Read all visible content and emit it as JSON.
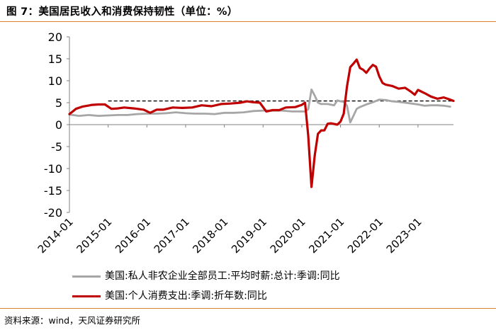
{
  "title": "图 7：美国居民收入和消费保持韧性（单位：%）",
  "source": "资料来源：wind，天风证券研究所",
  "colors": {
    "gray": "#a6a6a6",
    "red": "#c00000",
    "dashed": "#000000",
    "rule": "#d9822b"
  },
  "chart_data": {
    "type": "line",
    "x_ticks": [
      "2014-01",
      "2015-01",
      "2016-01",
      "2017-01",
      "2018-01",
      "2019-01",
      "2020-01",
      "2021-01",
      "2022-01",
      "2023-01"
    ],
    "y_ticks": [
      "20",
      "15",
      "10",
      "5",
      "0",
      "-5",
      "-10",
      "-15",
      "-20"
    ],
    "ylim": [
      -20,
      20
    ],
    "grid": false,
    "legend_position": "bottom",
    "reference_line": {
      "value": 5.4,
      "style": "dashed",
      "from": "2015-01",
      "to": "2023-12"
    },
    "series": [
      {
        "name": "美国:私人非农企业全部员工:平均时薪:总计:季调:同比",
        "color": "gray",
        "points": [
          [
            "2014-01",
            2.3
          ],
          [
            "2014-04",
            2.0
          ],
          [
            "2014-07",
            2.2
          ],
          [
            "2014-10",
            2.0
          ],
          [
            "2015-01",
            2.1
          ],
          [
            "2015-04",
            2.2
          ],
          [
            "2015-07",
            2.2
          ],
          [
            "2015-10",
            2.4
          ],
          [
            "2016-01",
            2.5
          ],
          [
            "2016-04",
            2.5
          ],
          [
            "2016-07",
            2.6
          ],
          [
            "2016-10",
            2.8
          ],
          [
            "2017-01",
            2.6
          ],
          [
            "2017-04",
            2.5
          ],
          [
            "2017-07",
            2.5
          ],
          [
            "2017-10",
            2.4
          ],
          [
            "2018-01",
            2.7
          ],
          [
            "2018-04",
            2.7
          ],
          [
            "2018-07",
            2.8
          ],
          [
            "2018-10",
            3.1
          ],
          [
            "2019-01",
            3.2
          ],
          [
            "2019-04",
            3.2
          ],
          [
            "2019-07",
            3.2
          ],
          [
            "2019-10",
            3.0
          ],
          [
            "2020-01",
            3.0
          ],
          [
            "2020-02",
            3.0
          ],
          [
            "2020-03",
            3.5
          ],
          [
            "2020-04",
            8.0
          ],
          [
            "2020-05",
            6.6
          ],
          [
            "2020-06",
            5.0
          ],
          [
            "2020-07",
            4.7
          ],
          [
            "2020-09",
            4.7
          ],
          [
            "2020-11",
            4.4
          ],
          [
            "2020-12",
            5.5
          ],
          [
            "2021-01",
            5.3
          ],
          [
            "2021-02",
            5.2
          ],
          [
            "2021-03",
            4.3
          ],
          [
            "2021-04",
            0.5
          ],
          [
            "2021-05",
            2.0
          ],
          [
            "2021-06",
            3.6
          ],
          [
            "2021-07",
            4.0
          ],
          [
            "2021-09",
            4.6
          ],
          [
            "2021-11",
            5.1
          ],
          [
            "2022-01",
            5.7
          ],
          [
            "2022-03",
            5.6
          ],
          [
            "2022-05",
            5.3
          ],
          [
            "2022-07",
            5.2
          ],
          [
            "2022-09",
            5.0
          ],
          [
            "2022-11",
            4.8
          ],
          [
            "2023-01",
            4.6
          ],
          [
            "2023-03",
            4.3
          ],
          [
            "2023-05",
            4.4
          ],
          [
            "2023-07",
            4.4
          ],
          [
            "2023-09",
            4.3
          ],
          [
            "2023-11",
            4.1
          ]
        ]
      },
      {
        "name": "美国:个人消费支出:季调:折年数:同比",
        "color": "red",
        "points": [
          [
            "2014-01",
            2.4
          ],
          [
            "2014-03",
            3.6
          ],
          [
            "2014-05",
            4.1
          ],
          [
            "2014-08",
            4.5
          ],
          [
            "2014-10",
            4.6
          ],
          [
            "2014-12",
            4.6
          ],
          [
            "2015-02",
            3.6
          ],
          [
            "2015-04",
            3.7
          ],
          [
            "2015-06",
            3.9
          ],
          [
            "2015-09",
            3.7
          ],
          [
            "2015-12",
            3.4
          ],
          [
            "2016-02",
            2.7
          ],
          [
            "2016-04",
            3.4
          ],
          [
            "2016-06",
            3.4
          ],
          [
            "2016-09",
            3.9
          ],
          [
            "2016-12",
            3.8
          ],
          [
            "2017-03",
            3.9
          ],
          [
            "2017-06",
            4.4
          ],
          [
            "2017-09",
            4.2
          ],
          [
            "2017-12",
            4.7
          ],
          [
            "2018-03",
            4.8
          ],
          [
            "2018-06",
            5.0
          ],
          [
            "2018-08",
            5.3
          ],
          [
            "2018-10",
            5.1
          ],
          [
            "2018-12",
            5.0
          ],
          [
            "2019-02",
            3.0
          ],
          [
            "2019-04",
            3.3
          ],
          [
            "2019-06",
            3.3
          ],
          [
            "2019-08",
            3.9
          ],
          [
            "2019-11",
            4.0
          ],
          [
            "2020-01",
            4.5
          ],
          [
            "2020-02",
            5.0
          ],
          [
            "2020-03",
            -2.5
          ],
          [
            "2020-04",
            -14.2
          ],
          [
            "2020-05",
            -7.0
          ],
          [
            "2020-06",
            -2.1
          ],
          [
            "2020-07",
            -1.3
          ],
          [
            "2020-08",
            -1.3
          ],
          [
            "2020-09",
            0.2
          ],
          [
            "2020-10",
            0.3
          ],
          [
            "2020-12",
            0.0
          ],
          [
            "2021-01",
            0.7
          ],
          [
            "2021-02",
            2.5
          ],
          [
            "2021-03",
            8.7
          ],
          [
            "2021-04",
            13.1
          ],
          [
            "2021-05",
            13.9
          ],
          [
            "2021-06",
            14.8
          ],
          [
            "2021-07",
            12.9
          ],
          [
            "2021-08",
            12.5
          ],
          [
            "2021-09",
            11.8
          ],
          [
            "2021-10",
            12.8
          ],
          [
            "2021-11",
            13.6
          ],
          [
            "2021-12",
            13.2
          ],
          [
            "2022-01",
            11.0
          ],
          [
            "2022-02",
            9.5
          ],
          [
            "2022-03",
            9.1
          ],
          [
            "2022-05",
            8.8
          ],
          [
            "2022-07",
            8.2
          ],
          [
            "2022-09",
            8.4
          ],
          [
            "2022-11",
            7.4
          ],
          [
            "2022-12",
            6.8
          ],
          [
            "2023-01",
            7.9
          ],
          [
            "2023-03",
            7.2
          ],
          [
            "2023-05",
            6.4
          ],
          [
            "2023-07",
            5.9
          ],
          [
            "2023-09",
            6.2
          ],
          [
            "2023-11",
            5.7
          ],
          [
            "2023-12",
            5.4
          ]
        ]
      }
    ]
  }
}
